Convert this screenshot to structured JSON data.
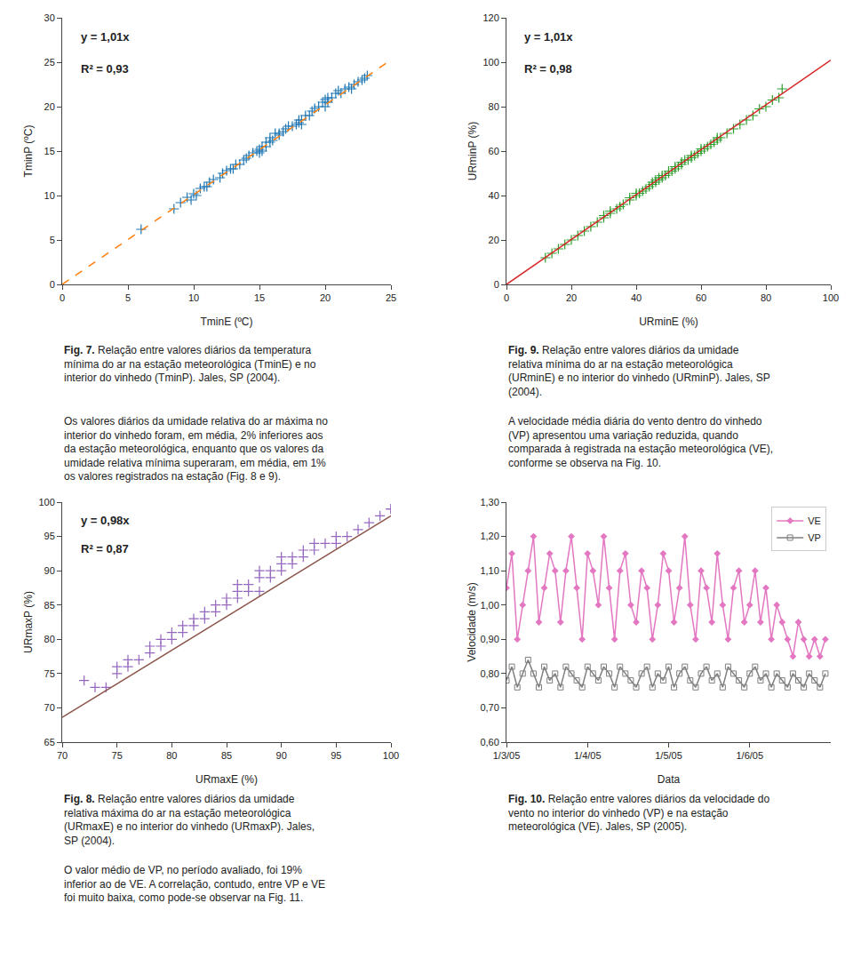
{
  "chart_data": [
    {
      "type": "scatter",
      "xlabel": "TminE (ºC)",
      "ylabel": "TminP (ºC)",
      "xlim": [
        0,
        25
      ],
      "ylim": [
        0,
        30
      ],
      "xticks": [
        0,
        5,
        10,
        15,
        20,
        25
      ],
      "yticks": [
        0,
        5,
        10,
        15,
        20,
        25,
        30
      ],
      "grid": false,
      "annotations": [
        "y = 1,01x",
        "R² = 0,93"
      ],
      "caption": [
        "Fig. 7.",
        " Relação entre valores diários da temperatura\nmínima do ar na estação meteorológica (TminE) e no\ninterior do vinhedo (TminP). Jales, SP (2004)."
      ],
      "series": [
        {
          "type": "scatter",
          "marker": "plus",
          "x": [
            8.5,
            9.0,
            9.5,
            9.8,
            10.0,
            10.2,
            10.5,
            10.8,
            11.0,
            11.2,
            11.5,
            12.0,
            12.2,
            12.5,
            12.8,
            13.0,
            13.2,
            13.5,
            13.8,
            14.0,
            14.2,
            14.5,
            14.8,
            15.0,
            15.0,
            15.2,
            15.2,
            15.5,
            15.5,
            15.8,
            15.8,
            16.0,
            16.2,
            16.5,
            16.5,
            16.8,
            17.0,
            17.2,
            17.5,
            17.8,
            18.0,
            18.0,
            18.2,
            18.2,
            18.5,
            18.8,
            19.0,
            19.2,
            19.5,
            19.8,
            20.0,
            20.0,
            20.2,
            20.2,
            20.5,
            20.8,
            21.0,
            21.2,
            21.5,
            21.8,
            22.0,
            22.2,
            22.5,
            22.8,
            23.0,
            23.2,
            6.0
          ],
          "values": [
            8.5,
            9.2,
            9.8,
            9.5,
            10.2,
            10.0,
            10.8,
            11.0,
            11.0,
            11.5,
            11.8,
            12.0,
            12.5,
            12.8,
            13.0,
            13.0,
            13.5,
            13.5,
            14.0,
            14.2,
            14.5,
            14.8,
            15.0,
            15.2,
            14.8,
            15.5,
            15.0,
            16.0,
            15.5,
            16.0,
            16.5,
            16.2,
            17.0,
            17.0,
            16.8,
            17.2,
            17.5,
            17.8,
            17.8,
            18.0,
            18.2,
            18.5,
            18.5,
            18.0,
            19.0,
            19.0,
            19.5,
            19.8,
            20.0,
            20.5,
            20.0,
            20.8,
            21.0,
            20.5,
            21.0,
            21.5,
            21.8,
            21.5,
            22.0,
            22.2,
            22.0,
            22.5,
            22.8,
            23.0,
            23.2,
            23.5,
            6.2
          ]
        },
        {
          "type": "line",
          "line_style": "dashed",
          "x": [
            0,
            25
          ],
          "values": [
            0,
            25.25
          ]
        }
      ]
    },
    {
      "type": "scatter",
      "xlabel": "URminE (%)",
      "ylabel": "URminP (%)",
      "xlim": [
        0,
        100
      ],
      "ylim": [
        0,
        120
      ],
      "xticks": [
        0,
        20,
        40,
        60,
        80,
        100
      ],
      "yticks": [
        0,
        20,
        40,
        60,
        80,
        100,
        120
      ],
      "grid": false,
      "annotations": [
        "y = 1,01x",
        "R² = 0,98"
      ],
      "caption": [
        "Fig. 9.",
        " Relação entre valores diários da umidade\nrelativa mínima do ar na estação meteorológica\n(URminE) e no interior do vinhedo (URminP). Jales, SP\n(2004)."
      ],
      "series": [
        {
          "type": "scatter",
          "marker": "plus",
          "x": [
            12,
            14,
            16,
            18,
            20,
            22,
            24,
            26,
            28,
            30,
            30,
            32,
            32,
            34,
            35,
            36,
            38,
            38,
            40,
            40,
            41,
            42,
            43,
            44,
            45,
            45,
            46,
            46,
            47,
            47,
            48,
            48,
            49,
            50,
            50,
            51,
            52,
            52,
            53,
            54,
            54,
            55,
            56,
            57,
            57,
            58,
            59,
            60,
            60,
            61,
            62,
            63,
            64,
            65,
            65,
            66,
            68,
            70,
            72,
            74,
            76,
            78,
            80,
            82,
            84,
            85
          ],
          "values": [
            12,
            14,
            16,
            18,
            20,
            22,
            24,
            26,
            28,
            30,
            31,
            32,
            33,
            34,
            35,
            36,
            38,
            39,
            40,
            41,
            41,
            42,
            43,
            44,
            45,
            46,
            46,
            47,
            47,
            48,
            48,
            49,
            49,
            50,
            51,
            51,
            52,
            53,
            53,
            54,
            55,
            56,
            56,
            57,
            58,
            58,
            59,
            60,
            61,
            61,
            62,
            63,
            64,
            65,
            66,
            66,
            68,
            70,
            72,
            74,
            76,
            79,
            80,
            83,
            84,
            88
          ]
        },
        {
          "type": "line",
          "line_style": "solid",
          "x": [
            0,
            100
          ],
          "values": [
            0,
            101
          ]
        }
      ]
    },
    {
      "type": "scatter",
      "xlabel": "URmaxE (%)",
      "ylabel": "URmaxP (%)",
      "xlim": [
        70,
        100
      ],
      "ylim": [
        65,
        100
      ],
      "xticks": [
        70,
        75,
        80,
        85,
        90,
        95,
        100
      ],
      "yticks": [
        65,
        70,
        75,
        80,
        85,
        90,
        95,
        100
      ],
      "grid": false,
      "annotations": [
        "y = 0,98x",
        "R² = 0,87"
      ],
      "caption": [
        "Fig. 8.",
        " Relação entre valores diários da umidade\nrelativa máxima do ar na estação meteorológica\n(URmaxE) e no interior do vinhedo (URmaxP). Jales,\nSP (2004)."
      ],
      "series": [
        {
          "type": "scatter",
          "marker": "plus",
          "x": [
            72,
            73,
            74,
            75,
            75,
            76,
            76,
            77,
            78,
            78,
            79,
            79,
            80,
            80,
            81,
            81,
            82,
            82,
            83,
            83,
            84,
            84,
            85,
            85,
            86,
            86,
            86,
            87,
            87,
            88,
            88,
            88,
            89,
            89,
            90,
            90,
            90,
            91,
            91,
            92,
            92,
            93,
            93,
            94,
            95,
            95,
            96,
            97,
            98,
            99,
            100,
            100
          ],
          "values": [
            74,
            73,
            73,
            75,
            76,
            76,
            77,
            77,
            78,
            79,
            79,
            80,
            80,
            81,
            81,
            82,
            82,
            83,
            83,
            84,
            84,
            85,
            85,
            86,
            86,
            87,
            88,
            87,
            88,
            87,
            89,
            90,
            89,
            90,
            90,
            91,
            92,
            91,
            92,
            92,
            93,
            93,
            94,
            94,
            94,
            95,
            95,
            96,
            97,
            98,
            99,
            99
          ]
        },
        {
          "type": "line",
          "line_style": "solid",
          "x": [
            70,
            100
          ],
          "values": [
            68.6,
            98
          ]
        }
      ]
    },
    {
      "type": "line",
      "xlabel": "Data",
      "ylabel": "Velocidade (m/s)",
      "xlim": [
        0,
        120
      ],
      "ylim": [
        0.6,
        1.3
      ],
      "xticks": [
        {
          "value": 0,
          "label": "1/3/05"
        },
        {
          "value": 30,
          "label": "1/4/05"
        },
        {
          "value": 60,
          "label": "1/5/05"
        },
        {
          "value": 90,
          "label": "1/6/05"
        }
      ],
      "yticks": [
        {
          "value": 0.6,
          "label": "0,60"
        },
        {
          "value": 0.7,
          "label": "0,70"
        },
        {
          "value": 0.8,
          "label": "0,80"
        },
        {
          "value": 0.9,
          "label": "0,90"
        },
        {
          "value": 1.0,
          "label": "1,00"
        },
        {
          "value": 1.1,
          "label": "1,10"
        },
        {
          "value": 1.2,
          "label": "1,20"
        },
        {
          "value": 1.3,
          "label": "1,30"
        }
      ],
      "grid": false,
      "legend": "upper right",
      "caption": [
        "Fig. 10.",
        " Relação entre valores diários da velocidade do\nvento no interior do vinhedo (VP) e na estação\nmeteorológica (VE). Jales, SP (2005)."
      ],
      "series": [
        {
          "name": "VE",
          "type": "line",
          "marker": "diamond",
          "line_style": "solid",
          "x": [
            0,
            2,
            4,
            6,
            8,
            10,
            12,
            14,
            16,
            18,
            20,
            22,
            24,
            26,
            28,
            30,
            32,
            34,
            36,
            38,
            40,
            42,
            44,
            46,
            48,
            50,
            52,
            54,
            56,
            58,
            60,
            62,
            64,
            66,
            68,
            70,
            72,
            74,
            76,
            78,
            80,
            82,
            84,
            86,
            88,
            90,
            92,
            94,
            96,
            98,
            100,
            102,
            104,
            106,
            108,
            110,
            112,
            114,
            116,
            118
          ],
          "values": [
            1.05,
            1.15,
            0.9,
            1.0,
            1.1,
            1.2,
            0.95,
            1.05,
            1.15,
            1.1,
            0.95,
            1.1,
            1.2,
            1.05,
            0.9,
            1.15,
            1.1,
            1.0,
            1.2,
            1.05,
            0.9,
            1.1,
            1.15,
            1.0,
            0.95,
            1.1,
            1.05,
            0.9,
            1.0,
            1.15,
            1.1,
            0.95,
            1.05,
            1.2,
            1.0,
            0.9,
            1.1,
            1.05,
            0.95,
            1.15,
            1.0,
            0.9,
            1.05,
            1.1,
            0.95,
            1.0,
            1.1,
            0.95,
            1.05,
            0.9,
            1.0,
            0.95,
            0.9,
            0.85,
            0.95,
            0.9,
            0.85,
            0.9,
            0.85,
            0.9
          ]
        },
        {
          "name": "VP",
          "type": "line",
          "marker": "square-open",
          "line_style": "solid",
          "x": [
            0,
            2,
            4,
            6,
            8,
            10,
            12,
            14,
            16,
            18,
            20,
            22,
            24,
            26,
            28,
            30,
            32,
            34,
            36,
            38,
            40,
            42,
            44,
            46,
            48,
            50,
            52,
            54,
            56,
            58,
            60,
            62,
            64,
            66,
            68,
            70,
            72,
            74,
            76,
            78,
            80,
            82,
            84,
            86,
            88,
            90,
            92,
            94,
            96,
            98,
            100,
            102,
            104,
            106,
            108,
            110,
            112,
            114,
            116,
            118
          ],
          "values": [
            0.78,
            0.82,
            0.76,
            0.8,
            0.84,
            0.8,
            0.76,
            0.82,
            0.78,
            0.8,
            0.76,
            0.82,
            0.8,
            0.78,
            0.76,
            0.82,
            0.8,
            0.78,
            0.82,
            0.8,
            0.76,
            0.82,
            0.8,
            0.78,
            0.76,
            0.8,
            0.82,
            0.76,
            0.8,
            0.78,
            0.82,
            0.76,
            0.8,
            0.82,
            0.78,
            0.76,
            0.8,
            0.82,
            0.78,
            0.8,
            0.76,
            0.82,
            0.8,
            0.78,
            0.76,
            0.8,
            0.82,
            0.78,
            0.8,
            0.76,
            0.8,
            0.78,
            0.76,
            0.8,
            0.78,
            0.76,
            0.8,
            0.78,
            0.76,
            0.8
          ]
        }
      ]
    }
  ],
  "texts": [
    "Os valores diários da umidade relativa do ar máxima no\ninterior do vinhedo foram, em média, 2% inferiores aos\nda estação meteorológica, enquanto que os valores da\numidade relativa mínima superaram, em média, em 1%\nos valores registrados na estação (Fig. 8 e 9).",
    "A velocidade média diária do vento dentro do vinhedo\n(VP) apresentou uma variação reduzida, quando\ncomparada à registrada na estação meteorológica (VE),\nconforme se observa na Fig. 10.",
    "O valor médio de VP, no período avaliado, foi 19%\ninferior ao de VE. A correlação, contudo, entre VP e VE\nfoi muito baixa, como pode-se observar na Fig. 11."
  ]
}
